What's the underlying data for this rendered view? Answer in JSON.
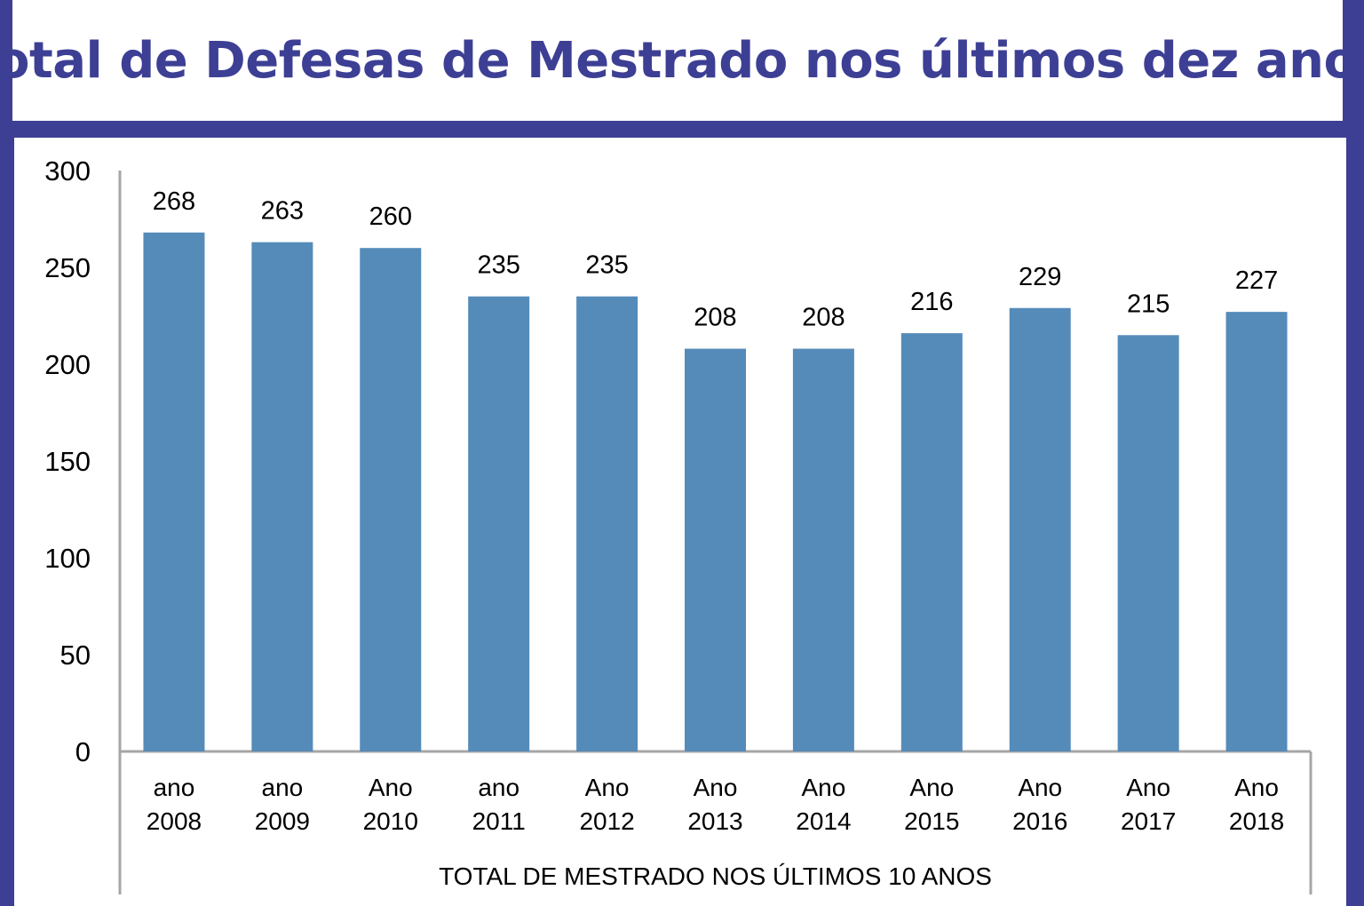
{
  "chart_data": {
    "type": "bar",
    "title": "Total de Defesas de Mestrado nos últimos dez anos",
    "xlabel": "TOTAL DE MESTRADO NOS ÚLTIMOS 10 ANOS",
    "ylabel": "",
    "ylim": [
      0,
      300
    ],
    "yticks": [
      "0",
      "50",
      "100",
      "150",
      "200",
      "250",
      "300"
    ],
    "categories": [
      [
        "ano",
        "2008"
      ],
      [
        "ano",
        "2009"
      ],
      [
        "Ano",
        "2010"
      ],
      [
        "ano",
        "2011"
      ],
      [
        "Ano",
        "2012"
      ],
      [
        "Ano",
        "2013"
      ],
      [
        "Ano",
        "2014"
      ],
      [
        "Ano",
        "2015"
      ],
      [
        "Ano",
        "2016"
      ],
      [
        "Ano",
        "2017"
      ],
      [
        "Ano",
        "2018"
      ]
    ],
    "values": [
      268,
      263,
      260,
      235,
      235,
      208,
      208,
      216,
      229,
      215,
      227
    ],
    "data_labels": [
      "268",
      "263",
      "260",
      "235",
      "235",
      "208",
      "208",
      "216",
      "229",
      "215",
      "227"
    ],
    "grid": false,
    "legend": "none",
    "colors": {
      "bar": "#558bb9",
      "frame": "#3d3f94",
      "title": "#3d3f94",
      "axis": "#a6a6a6"
    }
  }
}
